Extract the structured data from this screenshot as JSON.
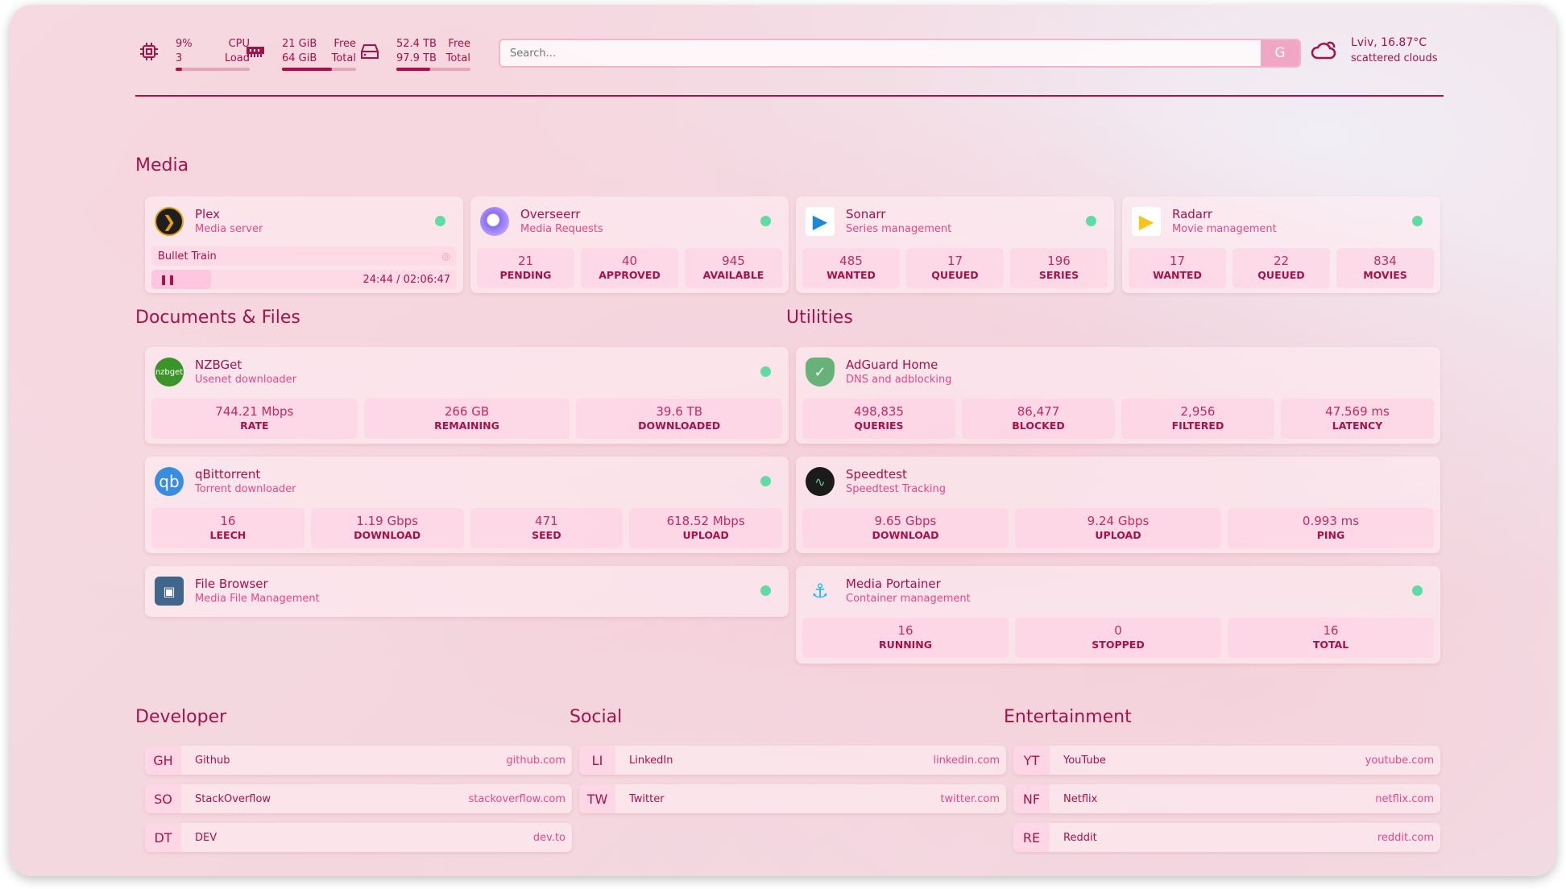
{
  "resources": {
    "cpu": {
      "icon": "cpu-icon",
      "value": "9%",
      "value2": "3",
      "label": "CPU",
      "label2": "Load",
      "percent": 9
    },
    "memory": {
      "icon": "memory-icon",
      "value": "21 GiB",
      "value2": "64 GiB",
      "label": "Free",
      "label2": "Total",
      "percent": 67
    },
    "disk": {
      "icon": "disk-icon",
      "value": "52.4 TB",
      "value2": "97.9 TB",
      "label": "Free",
      "label2": "Total",
      "percent": 46
    }
  },
  "search": {
    "placeholder": "Search...",
    "button": "G"
  },
  "weather": {
    "icon": "cloud-icon",
    "line1": "Lviv, 16.87°C",
    "line2": "scattered clouds"
  },
  "sections": {
    "media": "Media",
    "docs": "Documents & Files",
    "utilities": "Utilities",
    "developer": "Developer",
    "social": "Social",
    "entertainment": "Entertainment"
  },
  "colors": {
    "accent": "#a5124b",
    "subtext": "#e4488a",
    "status_online": "#5fdba3"
  },
  "media": [
    {
      "name": "Plex",
      "desc": "Media server",
      "icon": "plex-icon",
      "status": "online",
      "now_playing": {
        "title": "Bullet Train",
        "time": "24:44 / 02:06:47",
        "state": "paused"
      }
    },
    {
      "name": "Overseerr",
      "desc": "Media Requests",
      "icon": "overseerr-icon",
      "status": "online",
      "stats": [
        {
          "v": "21",
          "l": "PENDING"
        },
        {
          "v": "40",
          "l": "APPROVED"
        },
        {
          "v": "945",
          "l": "AVAILABLE"
        }
      ]
    },
    {
      "name": "Sonarr",
      "desc": "Series management",
      "icon": "sonarr-icon",
      "status": "online",
      "stats": [
        {
          "v": "485",
          "l": "WANTED"
        },
        {
          "v": "17",
          "l": "QUEUED"
        },
        {
          "v": "196",
          "l": "SERIES"
        }
      ]
    },
    {
      "name": "Radarr",
      "desc": "Movie management",
      "icon": "radarr-icon",
      "status": "online",
      "stats": [
        {
          "v": "17",
          "l": "WANTED"
        },
        {
          "v": "22",
          "l": "QUEUED"
        },
        {
          "v": "834",
          "l": "MOVIES"
        }
      ]
    }
  ],
  "docs": [
    {
      "name": "NZBGet",
      "desc": "Usenet downloader",
      "icon": "nzbget-icon",
      "icon_text": "nzbget",
      "status": "online",
      "stats": [
        {
          "v": "744.21 Mbps",
          "l": "RATE"
        },
        {
          "v": "266 GB",
          "l": "REMAINING"
        },
        {
          "v": "39.6 TB",
          "l": "DOWNLOADED"
        }
      ]
    },
    {
      "name": "qBittorrent",
      "desc": "Torrent downloader",
      "icon": "qbittorrent-icon",
      "icon_text": "qb",
      "status": "online",
      "stats": [
        {
          "v": "16",
          "l": "LEECH"
        },
        {
          "v": "1.19 Gbps",
          "l": "DOWNLOAD"
        },
        {
          "v": "471",
          "l": "SEED"
        },
        {
          "v": "618.52 Mbps",
          "l": "UPLOAD"
        }
      ]
    },
    {
      "name": "File Browser",
      "desc": "Media File Management",
      "icon": "filebrowser-icon",
      "status": "online",
      "stats": []
    }
  ],
  "utilities": [
    {
      "name": "AdGuard Home",
      "desc": "DNS and adblocking",
      "icon": "adguard-icon",
      "status": "none",
      "stats": [
        {
          "v": "498,835",
          "l": "QUERIES"
        },
        {
          "v": "86,477",
          "l": "BLOCKED"
        },
        {
          "v": "2,956",
          "l": "FILTERED"
        },
        {
          "v": "47.569 ms",
          "l": "LATENCY"
        }
      ]
    },
    {
      "name": "Speedtest",
      "desc": "Speedtest Tracking",
      "icon": "speedtest-icon",
      "status": "none",
      "stats": [
        {
          "v": "9.65 Gbps",
          "l": "DOWNLOAD"
        },
        {
          "v": "9.24 Gbps",
          "l": "UPLOAD"
        },
        {
          "v": "0.993 ms",
          "l": "PING"
        }
      ]
    },
    {
      "name": "Media Portainer",
      "desc": "Container management",
      "icon": "portainer-icon",
      "status": "online",
      "stats": [
        {
          "v": "16",
          "l": "RUNNING"
        },
        {
          "v": "0",
          "l": "STOPPED"
        },
        {
          "v": "16",
          "l": "TOTAL"
        }
      ]
    }
  ],
  "bookmarks": {
    "developer": [
      {
        "abbr": "GH",
        "name": "Github",
        "url": "github.com"
      },
      {
        "abbr": "SO",
        "name": "StackOverflow",
        "url": "stackoverflow.com"
      },
      {
        "abbr": "DT",
        "name": "DEV",
        "url": "dev.to"
      }
    ],
    "social": [
      {
        "abbr": "LI",
        "name": "LinkedIn",
        "url": "linkedin.com"
      },
      {
        "abbr": "TW",
        "name": "Twitter",
        "url": "twitter.com"
      }
    ],
    "entertainment": [
      {
        "abbr": "YT",
        "name": "YouTube",
        "url": "youtube.com"
      },
      {
        "abbr": "NF",
        "name": "Netflix",
        "url": "netflix.com"
      },
      {
        "abbr": "RE",
        "name": "Reddit",
        "url": "reddit.com"
      }
    ]
  }
}
